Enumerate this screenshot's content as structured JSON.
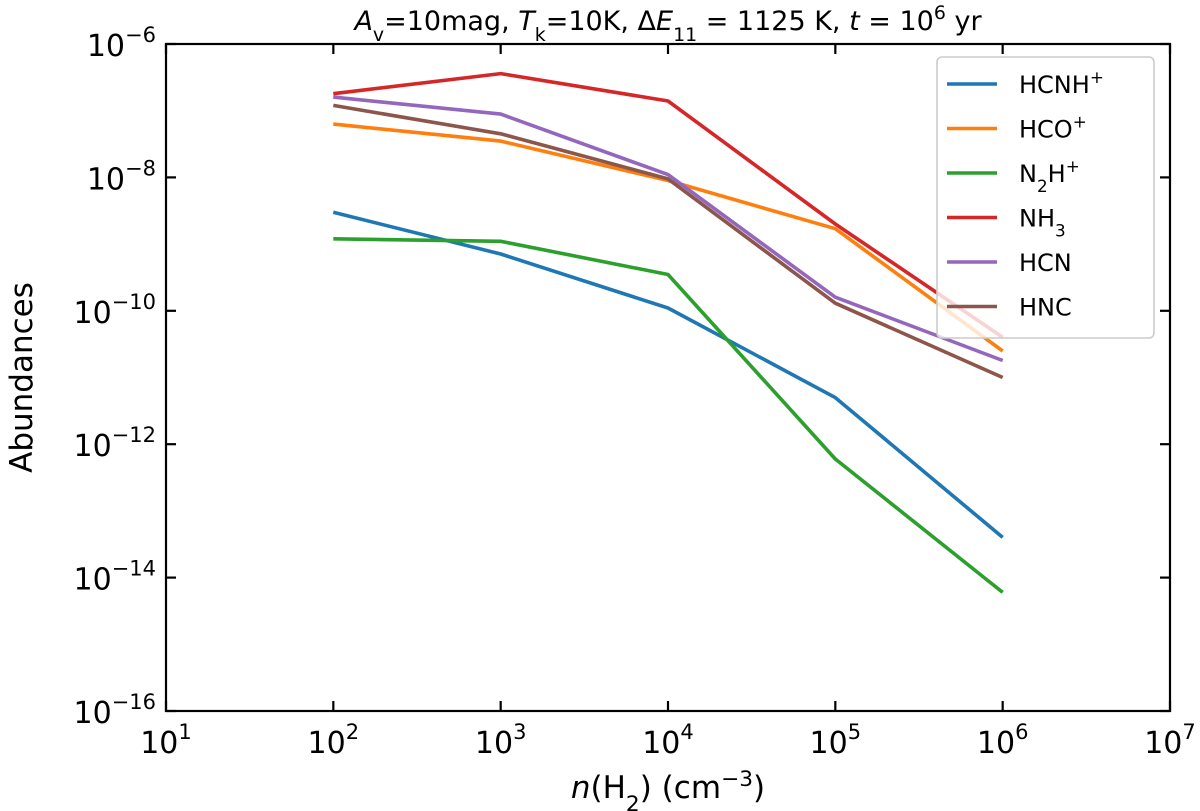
{
  "chart_data": {
    "type": "line",
    "title": {
      "runs": [
        {
          "t": "A",
          "italic": true
        },
        {
          "t": "v",
          "sub": true
        },
        {
          "t": "=10mag, "
        },
        {
          "t": "T",
          "italic": true
        },
        {
          "t": "k",
          "sub": true
        },
        {
          "t": "=10K, Δ"
        },
        {
          "t": "E",
          "italic": true
        },
        {
          "t": "11",
          "sub": true
        },
        {
          "t": " = 1125 K, "
        },
        {
          "t": "t",
          "italic": true
        },
        {
          "t": " = 10"
        },
        {
          "t": "6",
          "sup": true
        },
        {
          "t": " yr"
        }
      ]
    },
    "xlabel": {
      "runs": [
        {
          "t": "n",
          "italic": true
        },
        {
          "t": "(H"
        },
        {
          "t": "2",
          "sub": true
        },
        {
          "t": ") (cm"
        },
        {
          "t": "−3",
          "sup": true
        },
        {
          "t": ")"
        }
      ]
    },
    "ylabel": "Abundances",
    "xscale": "log",
    "yscale": "log",
    "xlim": [
      10,
      10000000
    ],
    "ylim": [
      1e-16,
      1e-06
    ],
    "xticks": [
      {
        "base": "10",
        "exp": "1",
        "value": 10
      },
      {
        "base": "10",
        "exp": "2",
        "value": 100
      },
      {
        "base": "10",
        "exp": "3",
        "value": 1000
      },
      {
        "base": "10",
        "exp": "4",
        "value": 10000
      },
      {
        "base": "10",
        "exp": "5",
        "value": 100000
      },
      {
        "base": "10",
        "exp": "6",
        "value": 1000000
      },
      {
        "base": "10",
        "exp": "7",
        "value": 10000000
      }
    ],
    "yticks": [
      {
        "base": "10",
        "exp": "−6",
        "value": 1e-06
      },
      {
        "base": "10",
        "exp": "−8",
        "value": 1e-08
      },
      {
        "base": "10",
        "exp": "−10",
        "value": 1e-10
      },
      {
        "base": "10",
        "exp": "−12",
        "value": 1e-12
      },
      {
        "base": "10",
        "exp": "−14",
        "value": 1e-14
      },
      {
        "base": "10",
        "exp": "−16",
        "value": 1e-16
      }
    ],
    "grid": false,
    "legend_position": "top-right",
    "x": [
      100,
      1000,
      10000,
      100000,
      1000000
    ],
    "series": [
      {
        "name": "HCNH+",
        "label_runs": [
          {
            "t": "HCNH"
          },
          {
            "t": "+",
            "sup": true
          }
        ],
        "color": "#1f77b4",
        "values": [
          3e-09,
          7.1e-10,
          1.1e-10,
          5e-12,
          4e-14
        ]
      },
      {
        "name": "HCO+",
        "label_runs": [
          {
            "t": "HCO"
          },
          {
            "t": "+",
            "sup": true
          }
        ],
        "color": "#ff7f0e",
        "values": [
          6.3e-08,
          3.5e-08,
          9e-09,
          1.7e-09,
          2.5e-11
        ]
      },
      {
        "name": "N2H+",
        "label_runs": [
          {
            "t": "N"
          },
          {
            "t": "2",
            "sub": true
          },
          {
            "t": "H"
          },
          {
            "t": "+",
            "sup": true
          }
        ],
        "color": "#2ca02c",
        "values": [
          1.2e-09,
          1.1e-09,
          3.5e-10,
          6e-13,
          6e-15
        ]
      },
      {
        "name": "NH3",
        "label_runs": [
          {
            "t": "NH"
          },
          {
            "t": "3",
            "sub": true
          }
        ],
        "color": "#d62728",
        "values": [
          1.8e-07,
          3.6e-07,
          1.4e-07,
          2e-09,
          4e-11
        ]
      },
      {
        "name": "HCN",
        "label_runs": [
          {
            "t": "HCN"
          }
        ],
        "color": "#9467bd",
        "values": [
          1.6e-07,
          8.9e-08,
          1.1e-08,
          1.6e-10,
          1.8e-11
        ]
      },
      {
        "name": "HNC",
        "label_runs": [
          {
            "t": "HNC"
          }
        ],
        "color": "#8c564b",
        "values": [
          1.2e-07,
          4.5e-08,
          9.5e-09,
          1.3e-10,
          1e-11
        ]
      }
    ]
  }
}
